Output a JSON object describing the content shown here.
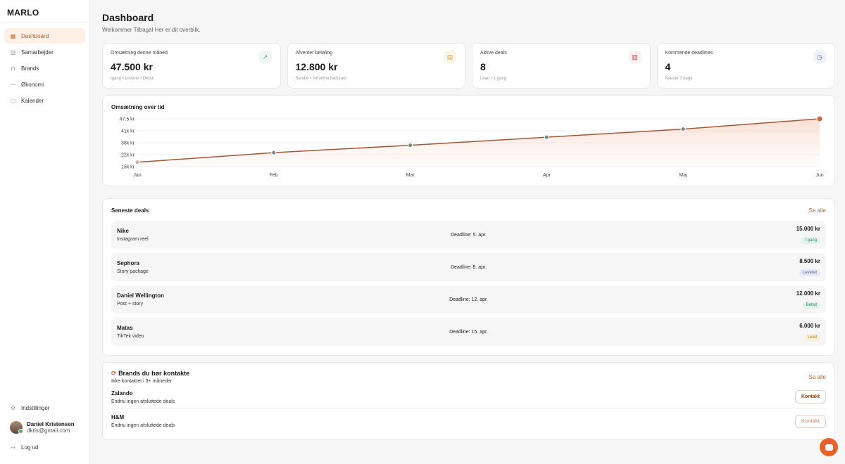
{
  "sidebar": {
    "logo": "MARLO",
    "items": [
      {
        "label": "Dashboard",
        "icon": "grid-icon",
        "active": true
      },
      {
        "label": "Samarbejder",
        "icon": "building-icon"
      },
      {
        "label": "Brands",
        "icon": "lock-icon"
      },
      {
        "label": "Økonomi",
        "icon": "trend-icon"
      },
      {
        "label": "Kalender",
        "icon": "calendar-icon"
      }
    ],
    "settings": "Indstillinger",
    "user": {
      "name": "Daniel Kristensen",
      "email": "dkris@gmail.com"
    },
    "logout": "Log ud"
  },
  "header": {
    "title": "Dashboard",
    "subtitle": "Welkommer Tilbagal Her er dit overbilk."
  },
  "stats": [
    {
      "label": "Omsætning denne måned",
      "value": "47.500 kr",
      "hint": "Igang • Leveret • Detail",
      "icon": "trend-up-icon",
      "color": "#3aa58a",
      "bg": "#eef7f5"
    },
    {
      "label": "Afventer betaling",
      "value": "12.800 kr",
      "hint": "Sendte • forfaldne fakturaer",
      "icon": "invoice-icon",
      "color": "#d4aa40",
      "bg": "#fbf6ea"
    },
    {
      "label": "Aktive deals",
      "value": "8",
      "hint": "Lead • 1 gang",
      "icon": "briefcase-icon",
      "color": "#b05050",
      "bg": "#fbefef"
    },
    {
      "label": "Kommende deadlines",
      "value": "4",
      "hint": "Naeste 7 dage",
      "icon": "clock-icon",
      "color": "#4a6aa0",
      "bg": "#eef2f9"
    }
  ],
  "chart_data": {
    "type": "area",
    "title": "Omsætning over tid",
    "categories": [
      "Jan",
      "Feb",
      "Mar",
      "Apr",
      "Maj",
      "Jun"
    ],
    "values": [
      18000,
      24500,
      29500,
      35000,
      40500,
      47500
    ],
    "yticks": [
      "15k kr",
      "22k kr",
      "38k kr",
      "41k kr",
      "47.5 kr"
    ],
    "ylim": [
      15000,
      47500
    ],
    "grid": true,
    "color": "#a0583a"
  },
  "deals": {
    "title": "Seneste deals",
    "see_all": "Se alle",
    "items": [
      {
        "brand": "Nike",
        "type": "Instagram reel",
        "deadline": "Deadline: 5. apr.",
        "amount": "15.000 kr",
        "status": "I gang",
        "fg": "#3a8a6a",
        "bg": "#e4f4ec"
      },
      {
        "brand": "Sephora",
        "type": "Story package",
        "deadline": "Deadline: 8. apr.",
        "amount": "8.500 kr",
        "status": "Leveret",
        "fg": "#4a5a8a",
        "bg": "#e6eaf6"
      },
      {
        "brand": "Daniel Wellington",
        "type": "Post + story",
        "deadline": "Deadline: 12. apr.",
        "amount": "12.000 kr",
        "status": "Betalt",
        "fg": "#3a8a6a",
        "bg": "#e0f2ea"
      },
      {
        "brand": "Matas",
        "type": "TikTek video",
        "deadline": "Deadline: 15. apr.",
        "amount": "6.000 kr",
        "status": "Lead",
        "fg": "#b0802a",
        "bg": "#fbf0da"
      }
    ]
  },
  "brands": {
    "title": "Brands du bør kontakte",
    "subtitle": "Ikke kontaktet i 3+ måneder",
    "see_all": "Sa alle",
    "items": [
      {
        "name": "Zalando",
        "note": "Endnu ingen afsluttede deals",
        "button": "Kontakt"
      },
      {
        "name": "H&M",
        "note": "Endnu ingen afsluttede deals",
        "button": "Kontakt"
      }
    ]
  }
}
